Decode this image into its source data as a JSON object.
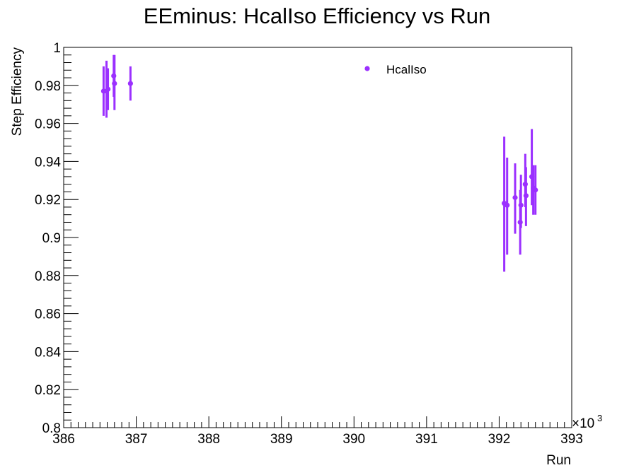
{
  "chart_data": {
    "type": "scatter",
    "title": "EEminus: HcalIso Efficiency vs Run",
    "xlabel": "Run",
    "ylabel": "Step Efficiency",
    "x_multiplier_label": "×10",
    "x_multiplier_exponent": "3",
    "xlim": [
      386,
      393
    ],
    "ylim": [
      0.8,
      1.0
    ],
    "x_ticks": [
      386,
      387,
      388,
      389,
      390,
      391,
      392,
      393
    ],
    "x_tick_labels": [
      "386",
      "387",
      "388",
      "389",
      "390",
      "391",
      "392",
      "393"
    ],
    "y_ticks": [
      0.8,
      0.82,
      0.84,
      0.86,
      0.88,
      0.9,
      0.92,
      0.94,
      0.96,
      0.98,
      1.0
    ],
    "y_tick_labels": [
      "0.8",
      "0.82",
      "0.84",
      "0.86",
      "0.88",
      "0.9",
      "0.92",
      "0.94",
      "0.96",
      "0.98",
      "1"
    ],
    "legend_position": "top-right",
    "grid": false,
    "series": [
      {
        "name": "HcalIso",
        "color": "#9b30ff",
        "points": [
          {
            "x": 386.55,
            "y": 0.977,
            "err_low": 0.013,
            "err_high": 0.013
          },
          {
            "x": 386.59,
            "y": 0.977,
            "err_low": 0.014,
            "err_high": 0.016
          },
          {
            "x": 386.61,
            "y": 0.978,
            "err_low": 0.011,
            "err_high": 0.011
          },
          {
            "x": 386.69,
            "y": 0.985,
            "err_low": 0.011,
            "err_high": 0.011
          },
          {
            "x": 386.7,
            "y": 0.981,
            "err_low": 0.014,
            "err_high": 0.015
          },
          {
            "x": 386.92,
            "y": 0.981,
            "err_low": 0.009,
            "err_high": 0.009
          },
          {
            "x": 392.07,
            "y": 0.918,
            "err_low": 0.036,
            "err_high": 0.035
          },
          {
            "x": 392.11,
            "y": 0.917,
            "err_low": 0.026,
            "err_high": 0.025
          },
          {
            "x": 392.22,
            "y": 0.921,
            "err_low": 0.019,
            "err_high": 0.018
          },
          {
            "x": 392.29,
            "y": 0.908,
            "err_low": 0.017,
            "err_high": 0.017
          },
          {
            "x": 392.3,
            "y": 0.917,
            "err_low": 0.012,
            "err_high": 0.016
          },
          {
            "x": 392.36,
            "y": 0.928,
            "err_low": 0.012,
            "err_high": 0.016
          },
          {
            "x": 392.37,
            "y": 0.922,
            "err_low": 0.016,
            "err_high": 0.015
          },
          {
            "x": 392.45,
            "y": 0.932,
            "err_low": 0.015,
            "err_high": 0.025
          },
          {
            "x": 392.47,
            "y": 0.926,
            "err_low": 0.014,
            "err_high": 0.012
          },
          {
            "x": 392.5,
            "y": 0.925,
            "err_low": 0.013,
            "err_high": 0.013
          }
        ]
      }
    ]
  }
}
